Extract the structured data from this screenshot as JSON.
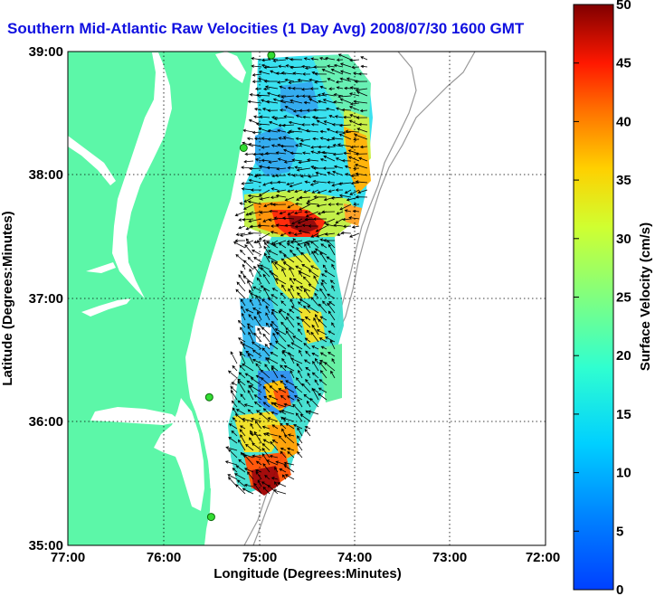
{
  "title": "Southern Mid-Atlantic Raw Velocities (1 Day Avg) 2008/07/30 1600 GMT",
  "axes": {
    "xlabel": "Longitude (Degrees:Minutes)",
    "ylabel": "Latitude (Degrees:Minutes)",
    "xticks": [
      "77:00",
      "76:00",
      "75:00",
      "74:00",
      "73:00",
      "72:00"
    ],
    "yticks": [
      "39:00",
      "38:00",
      "37:00",
      "36:00",
      "35:00"
    ],
    "xlim": [
      -77,
      -72
    ],
    "ylim": [
      35,
      39
    ],
    "grid": true
  },
  "colorbar": {
    "label": "Surface Velocity (cm/s)",
    "ticks": [
      "0",
      "5",
      "10",
      "15",
      "20",
      "25",
      "30",
      "35",
      "40",
      "45",
      "50"
    ],
    "range": [
      0,
      50
    ],
    "colormap": "jet"
  },
  "colors": {
    "land": "#5cf7a8",
    "water": "#ffffff",
    "title": "#1010e0",
    "station": "#33dd33",
    "bathymetry": "#999999"
  },
  "stations": [
    {
      "lon": -74.87,
      "lat": 38.97
    },
    {
      "lon": -75.16,
      "lat": 38.22
    },
    {
      "lon": -75.52,
      "lat": 36.2
    },
    {
      "lon": -75.5,
      "lat": 35.23
    }
  ]
}
